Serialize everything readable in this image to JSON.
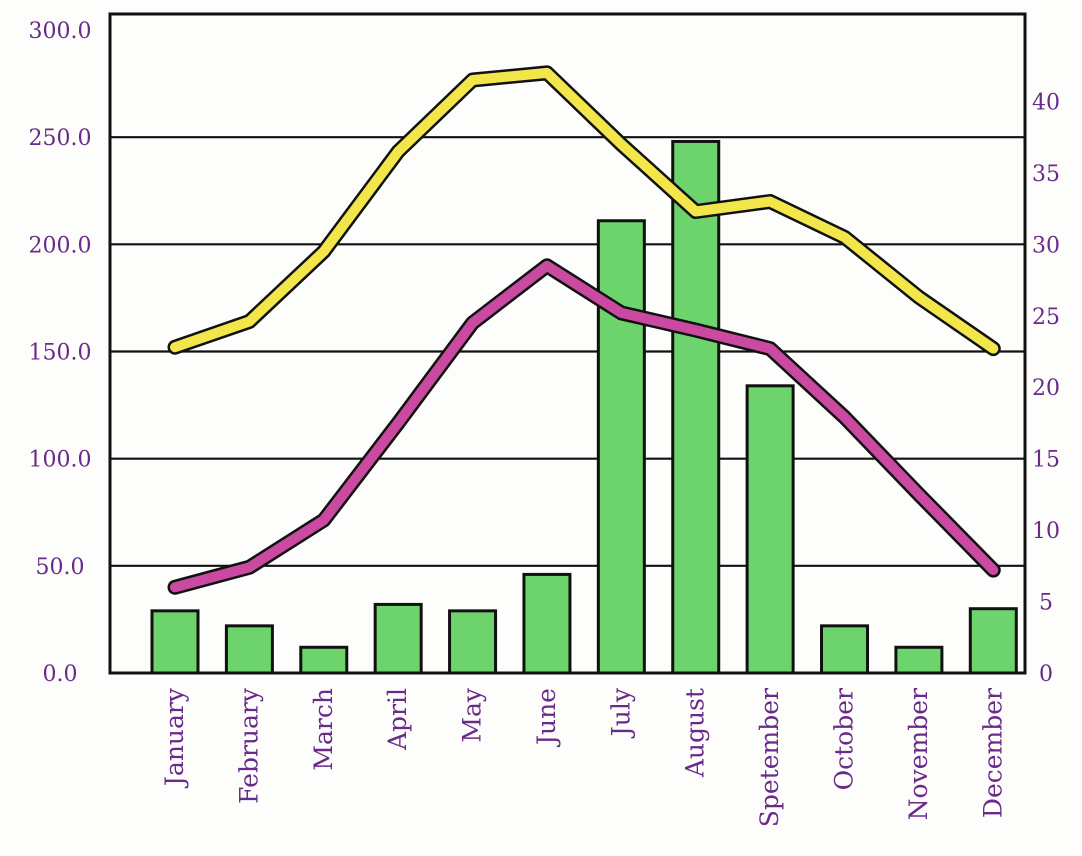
{
  "chart_data": {
    "type": "bar",
    "categories": [
      "January",
      "February",
      "March",
      "April",
      "May",
      "June",
      "July",
      "August",
      "Spetember",
      "October",
      "November",
      "December"
    ],
    "series": [
      {
        "kind": "bar",
        "axis": "left",
        "values": [
          29,
          22,
          12,
          32,
          29,
          46,
          211,
          248,
          134,
          22,
          12,
          30
        ]
      },
      {
        "kind": "line",
        "axis": "right",
        "values": [
          22.8,
          24.6,
          29.5,
          36.5,
          41.5,
          42.0,
          37.0,
          32.3,
          33.0,
          30.5,
          26.3,
          22.7
        ]
      },
      {
        "kind": "line",
        "axis": "right",
        "values": [
          6.0,
          7.4,
          10.7,
          17.5,
          24.5,
          28.5,
          25.2,
          24.0,
          22.7,
          17.9,
          12.5,
          7.2
        ]
      }
    ],
    "yleft": {
      "ticks": [
        "0.0",
        "50.0",
        "100.0",
        "150.0",
        "200.0",
        "250.0",
        "300.0"
      ],
      "ylim": [
        0,
        300
      ]
    },
    "yright": {
      "ticks": [
        "0",
        "5",
        "10",
        "15",
        "20",
        "25",
        "30",
        "35",
        "40"
      ],
      "ylim": [
        0,
        45
      ]
    },
    "grid": true,
    "colors": {
      "bar": "#6dd46d",
      "line1": "#f2e64a",
      "line2": "#c94aa0",
      "axis": "#111111",
      "label": "#6a2a8a"
    }
  }
}
